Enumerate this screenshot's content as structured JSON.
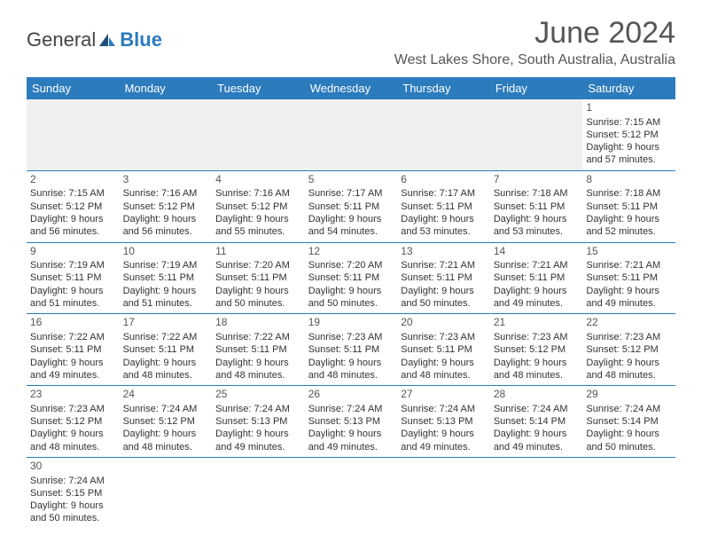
{
  "brand": {
    "part1": "General",
    "part2": "Blue"
  },
  "title": "June 2024",
  "location": "West Lakes Shore, South Australia, Australia",
  "colors": {
    "header_bg": "#2b7bbd",
    "header_text": "#ffffff",
    "cell_border": "#2b7bbd",
    "blank_bg": "#f0f0f0",
    "text": "#333333",
    "title": "#555555"
  },
  "weekdays": [
    "Sunday",
    "Monday",
    "Tuesday",
    "Wednesday",
    "Thursday",
    "Friday",
    "Saturday"
  ],
  "days": {
    "1": {
      "sunrise": "7:15 AM",
      "sunset": "5:12 PM",
      "daylight": "9 hours and 57 minutes."
    },
    "2": {
      "sunrise": "7:15 AM",
      "sunset": "5:12 PM",
      "daylight": "9 hours and 56 minutes."
    },
    "3": {
      "sunrise": "7:16 AM",
      "sunset": "5:12 PM",
      "daylight": "9 hours and 56 minutes."
    },
    "4": {
      "sunrise": "7:16 AM",
      "sunset": "5:12 PM",
      "daylight": "9 hours and 55 minutes."
    },
    "5": {
      "sunrise": "7:17 AM",
      "sunset": "5:11 PM",
      "daylight": "9 hours and 54 minutes."
    },
    "6": {
      "sunrise": "7:17 AM",
      "sunset": "5:11 PM",
      "daylight": "9 hours and 53 minutes."
    },
    "7": {
      "sunrise": "7:18 AM",
      "sunset": "5:11 PM",
      "daylight": "9 hours and 53 minutes."
    },
    "8": {
      "sunrise": "7:18 AM",
      "sunset": "5:11 PM",
      "daylight": "9 hours and 52 minutes."
    },
    "9": {
      "sunrise": "7:19 AM",
      "sunset": "5:11 PM",
      "daylight": "9 hours and 51 minutes."
    },
    "10": {
      "sunrise": "7:19 AM",
      "sunset": "5:11 PM",
      "daylight": "9 hours and 51 minutes."
    },
    "11": {
      "sunrise": "7:20 AM",
      "sunset": "5:11 PM",
      "daylight": "9 hours and 50 minutes."
    },
    "12": {
      "sunrise": "7:20 AM",
      "sunset": "5:11 PM",
      "daylight": "9 hours and 50 minutes."
    },
    "13": {
      "sunrise": "7:21 AM",
      "sunset": "5:11 PM",
      "daylight": "9 hours and 50 minutes."
    },
    "14": {
      "sunrise": "7:21 AM",
      "sunset": "5:11 PM",
      "daylight": "9 hours and 49 minutes."
    },
    "15": {
      "sunrise": "7:21 AM",
      "sunset": "5:11 PM",
      "daylight": "9 hours and 49 minutes."
    },
    "16": {
      "sunrise": "7:22 AM",
      "sunset": "5:11 PM",
      "daylight": "9 hours and 49 minutes."
    },
    "17": {
      "sunrise": "7:22 AM",
      "sunset": "5:11 PM",
      "daylight": "9 hours and 48 minutes."
    },
    "18": {
      "sunrise": "7:22 AM",
      "sunset": "5:11 PM",
      "daylight": "9 hours and 48 minutes."
    },
    "19": {
      "sunrise": "7:23 AM",
      "sunset": "5:11 PM",
      "daylight": "9 hours and 48 minutes."
    },
    "20": {
      "sunrise": "7:23 AM",
      "sunset": "5:11 PM",
      "daylight": "9 hours and 48 minutes."
    },
    "21": {
      "sunrise": "7:23 AM",
      "sunset": "5:12 PM",
      "daylight": "9 hours and 48 minutes."
    },
    "22": {
      "sunrise": "7:23 AM",
      "sunset": "5:12 PM",
      "daylight": "9 hours and 48 minutes."
    },
    "23": {
      "sunrise": "7:23 AM",
      "sunset": "5:12 PM",
      "daylight": "9 hours and 48 minutes."
    },
    "24": {
      "sunrise": "7:24 AM",
      "sunset": "5:12 PM",
      "daylight": "9 hours and 48 minutes."
    },
    "25": {
      "sunrise": "7:24 AM",
      "sunset": "5:13 PM",
      "daylight": "9 hours and 49 minutes."
    },
    "26": {
      "sunrise": "7:24 AM",
      "sunset": "5:13 PM",
      "daylight": "9 hours and 49 minutes."
    },
    "27": {
      "sunrise": "7:24 AM",
      "sunset": "5:13 PM",
      "daylight": "9 hours and 49 minutes."
    },
    "28": {
      "sunrise": "7:24 AM",
      "sunset": "5:14 PM",
      "daylight": "9 hours and 49 minutes."
    },
    "29": {
      "sunrise": "7:24 AM",
      "sunset": "5:14 PM",
      "daylight": "9 hours and 50 minutes."
    },
    "30": {
      "sunrise": "7:24 AM",
      "sunset": "5:15 PM",
      "daylight": "9 hours and 50 minutes."
    }
  },
  "labels": {
    "sunrise": "Sunrise: ",
    "sunset": "Sunset: ",
    "daylight": "Daylight: "
  },
  "layout": {
    "first_weekday_index": 6,
    "num_days": 30
  }
}
